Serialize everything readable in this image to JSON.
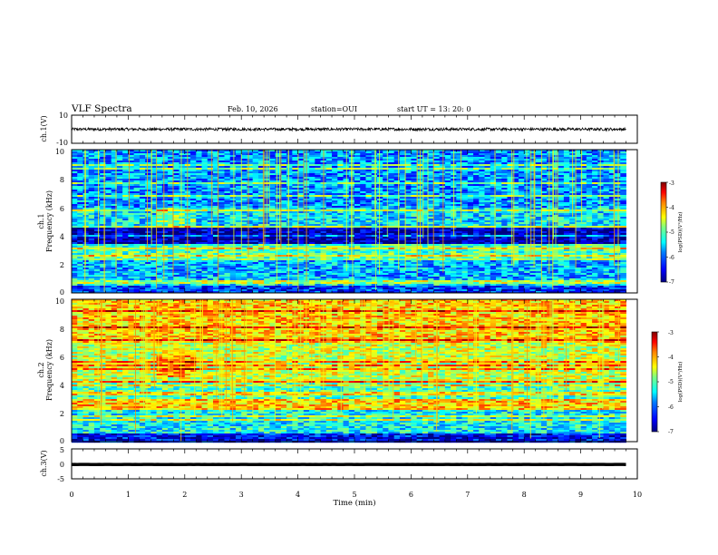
{
  "header": {
    "title": "VLF Spectra",
    "date": "Feb. 10, 2026",
    "station": "station=OUI",
    "start": "start  UT  =    13: 20: 0"
  },
  "colors": {
    "waveform": "#000000",
    "colormap": [
      "#00007f",
      "#0000ff",
      "#0080ff",
      "#00ffff",
      "#80ff80",
      "#ffff00",
      "#ff8000",
      "#ff0000",
      "#7f0000"
    ]
  },
  "chart_data": [
    {
      "type": "line",
      "panel": "ch1-waveform",
      "ylabel": "ch.1(V)",
      "ylim": [
        -10,
        10
      ],
      "ytick_labels": [
        "10",
        "-10"
      ],
      "xlim": [
        0,
        10
      ],
      "mean": 0,
      "amplitude": 1.0
    },
    {
      "type": "heatmap",
      "panel": "ch1-spectrogram",
      "ylabel_line1": "ch.1",
      "ylabel_line2": "Frequency (kHz)",
      "ylim": [
        0,
        10
      ],
      "ytick_labels": [
        "0",
        "2",
        "4",
        "6",
        "8",
        "10"
      ],
      "xlim": [
        0,
        10
      ],
      "colorbar": {
        "label": "log(PSD)(V²/Hz)",
        "range": [
          -7,
          -3
        ],
        "tick_labels": [
          "-3",
          "-4",
          "-5",
          "-6",
          "-7"
        ]
      },
      "bands_khz": [
        {
          "from": 0,
          "to": 0.6,
          "level": -6.3
        },
        {
          "from": 0.6,
          "to": 1.0,
          "level": -5.6
        },
        {
          "from": 1.0,
          "to": 2.4,
          "level": -5.8
        },
        {
          "from": 2.4,
          "to": 3.4,
          "level": -5.2
        },
        {
          "from": 3.4,
          "to": 4.6,
          "level": -6.8
        },
        {
          "from": 4.6,
          "to": 6.0,
          "level": -5.6
        },
        {
          "from": 6.0,
          "to": 10.0,
          "level": -5.9
        }
      ]
    },
    {
      "type": "heatmap",
      "panel": "ch2-spectrogram",
      "ylabel_line1": "ch.2",
      "ylabel_line2": "Frequency (kHz)",
      "ylim": [
        0,
        10
      ],
      "ytick_labels": [
        "0",
        "2",
        "4",
        "6",
        "8",
        "10"
      ],
      "xlim": [
        0,
        10
      ],
      "colorbar": {
        "label": "log(PSD)(V²/Hz)",
        "range": [
          -7,
          -3
        ],
        "tick_labels": [
          "-3",
          "-4",
          "-5",
          "-6",
          "-7"
        ]
      },
      "bands_khz": [
        {
          "from": 0,
          "to": 0.6,
          "level": -6.5
        },
        {
          "from": 0.6,
          "to": 2.2,
          "level": -5.5
        },
        {
          "from": 2.2,
          "to": 3.0,
          "level": -4.3
        },
        {
          "from": 3.0,
          "to": 4.2,
          "level": -5.2
        },
        {
          "from": 4.2,
          "to": 7.0,
          "level": -4.7
        },
        {
          "from": 7.0,
          "to": 10.0,
          "level": -4.3
        }
      ]
    },
    {
      "type": "line",
      "panel": "ch3-waveform",
      "ylabel": "ch.3(V)",
      "ylim": [
        -5,
        5
      ],
      "ytick_labels": [
        "5",
        "0",
        "-5"
      ],
      "xlim": [
        0,
        10
      ],
      "mean": -0.2,
      "amplitude": 0.15,
      "xlabel": "Time (min)",
      "xtick_labels": [
        "0",
        "1",
        "2",
        "3",
        "4",
        "5",
        "6",
        "7",
        "8",
        "9",
        "10"
      ]
    }
  ]
}
